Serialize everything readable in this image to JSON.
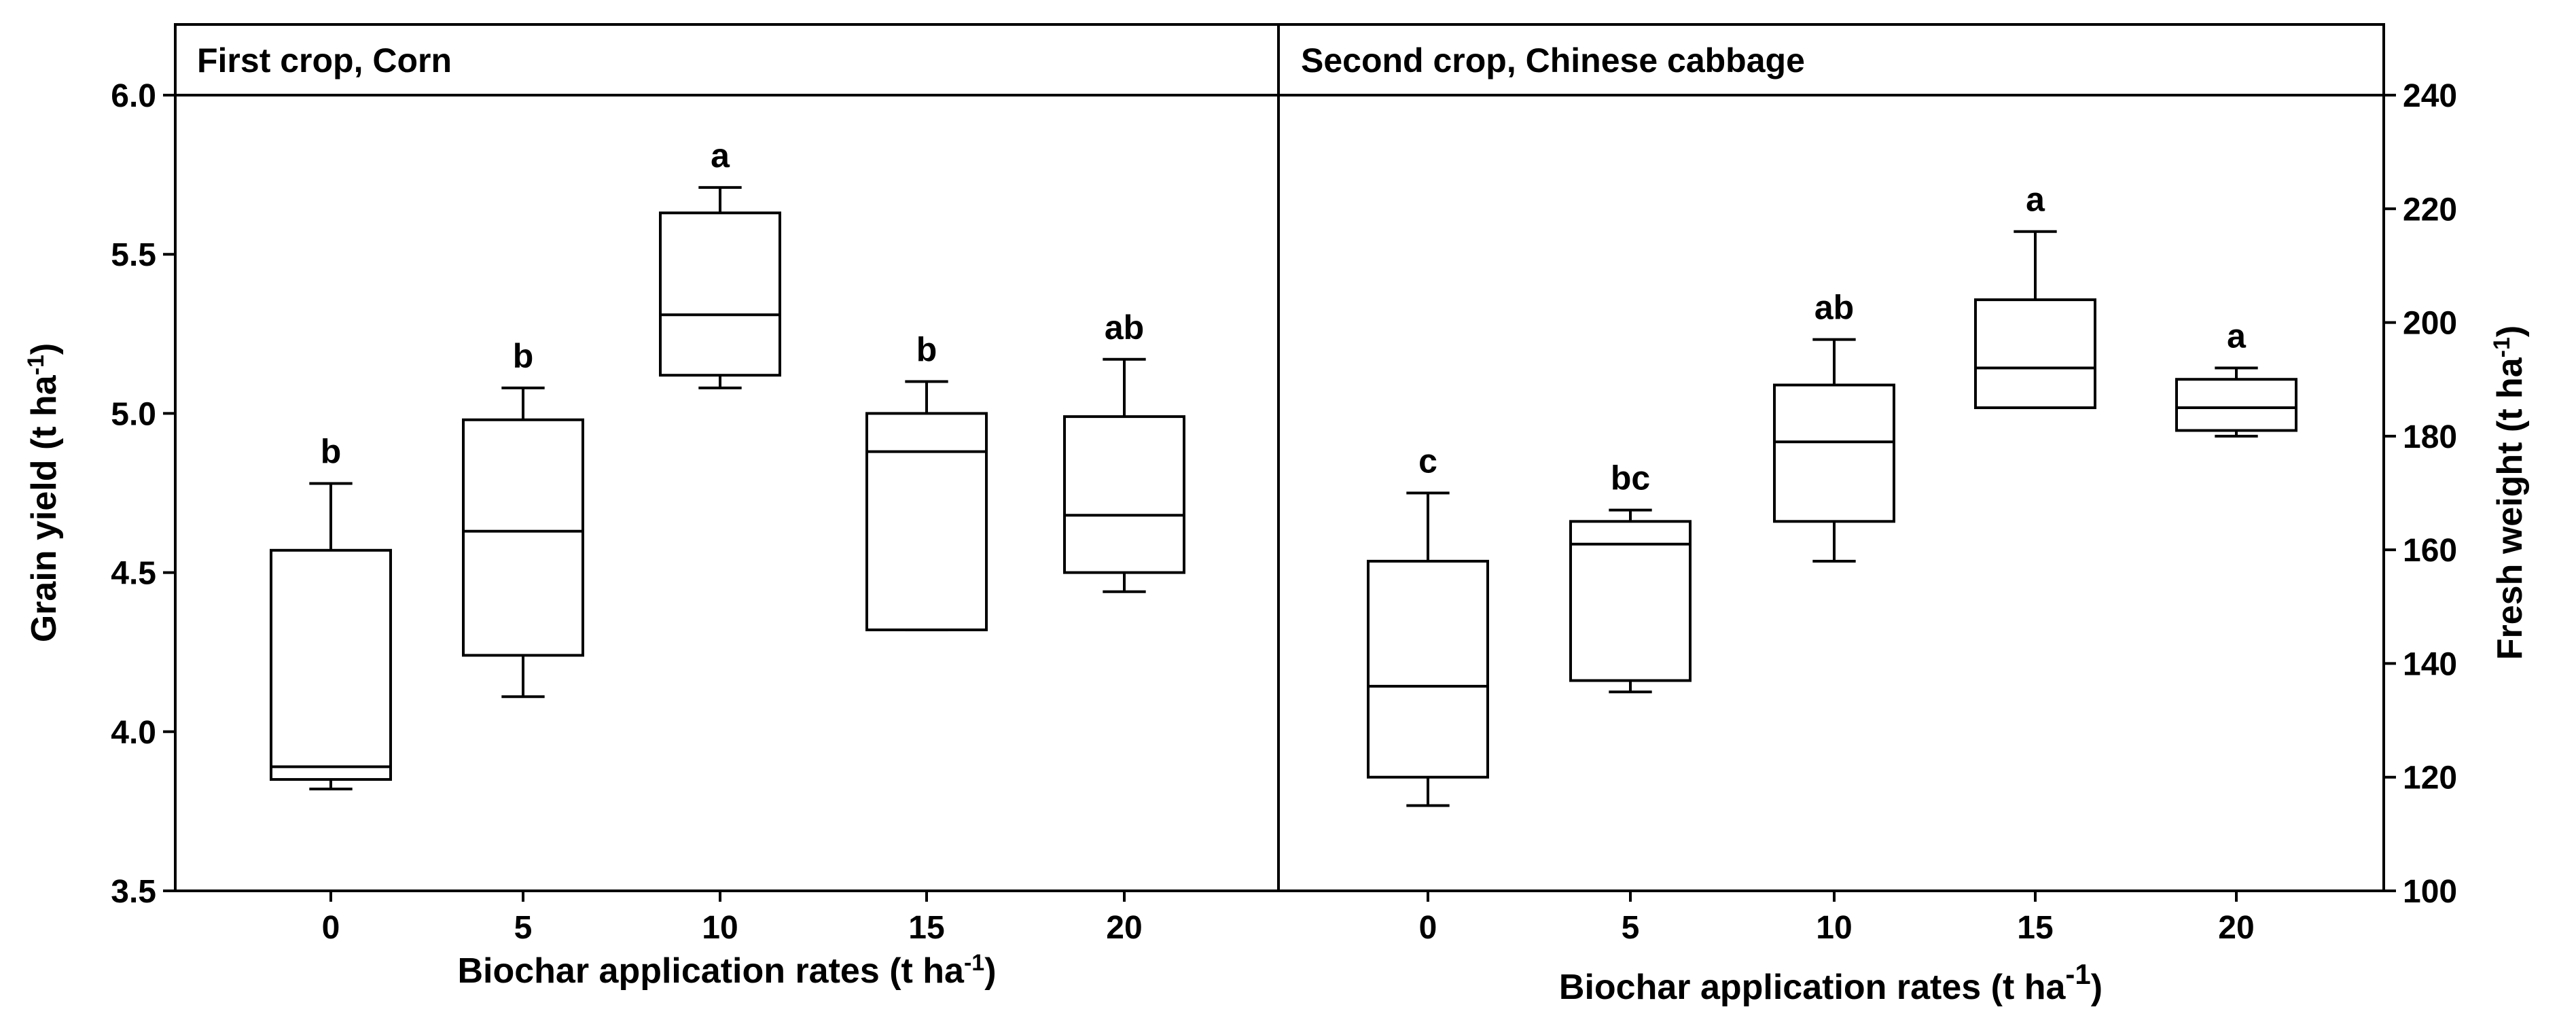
{
  "chart_data": [
    {
      "type": "box",
      "title": "First crop, Corn",
      "xlabel": "Biochar application rates (t ha",
      "xlabel_sup": "-1",
      "xlabel_end": ")",
      "ylabel": "Grain yield (t ha",
      "ylabel_sup": "-1",
      "ylabel_end": ")",
      "categories": [
        "0",
        "5",
        "10",
        "15",
        "20"
      ],
      "ylim": [
        3.5,
        6.0
      ],
      "yticks": [
        "3.5",
        "4.0",
        "4.5",
        "5.0",
        "5.5",
        "6.0"
      ],
      "boxes": [
        {
          "whisker_low": 3.82,
          "q1": 3.85,
          "median": 3.89,
          "q3": 4.57,
          "whisker_high": 4.78,
          "letter": "b"
        },
        {
          "whisker_low": 4.11,
          "q1": 4.24,
          "median": 4.63,
          "q3": 4.98,
          "whisker_high": 5.08,
          "letter": "b"
        },
        {
          "whisker_low": 5.08,
          "q1": 5.12,
          "median": 5.31,
          "q3": 5.63,
          "whisker_high": 5.71,
          "letter": "a"
        },
        {
          "whisker_low": 4.32,
          "q1": 4.32,
          "median": 4.88,
          "q3": 5.0,
          "whisker_high": 5.1,
          "letter": "b"
        },
        {
          "whisker_low": 4.44,
          "q1": 4.5,
          "median": 4.68,
          "q3": 4.99,
          "whisker_high": 5.17,
          "letter": "ab"
        }
      ]
    },
    {
      "type": "box",
      "title": "Second crop, Chinese cabbage",
      "xlabel": "Biochar application rates (t ha",
      "xlabel_sup": "-1",
      "xlabel_end": ")",
      "ylabel": "Fresh weight (t ha",
      "ylabel_sup": "-1",
      "ylabel_end": ")",
      "categories": [
        "0",
        "5",
        "10",
        "15",
        "20"
      ],
      "ylim": [
        100,
        240
      ],
      "yticks": [
        "100",
        "120",
        "140",
        "160",
        "180",
        "200",
        "220",
        "240"
      ],
      "boxes": [
        {
          "whisker_low": 115,
          "q1": 120,
          "median": 136,
          "q3": 158,
          "whisker_high": 170,
          "letter": "c"
        },
        {
          "whisker_low": 135,
          "q1": 137,
          "median": 161,
          "q3": 165,
          "whisker_high": 167,
          "letter": "bc"
        },
        {
          "whisker_low": 158,
          "q1": 165,
          "median": 179,
          "q3": 189,
          "whisker_high": 197,
          "letter": "ab"
        },
        {
          "whisker_low": 185,
          "q1": 185,
          "median": 192,
          "q3": 204,
          "whisker_high": 216,
          "letter": "a"
        },
        {
          "whisker_low": 180,
          "q1": 181,
          "median": 185,
          "q3": 190,
          "whisker_high": 192,
          "letter": "a"
        }
      ]
    }
  ]
}
